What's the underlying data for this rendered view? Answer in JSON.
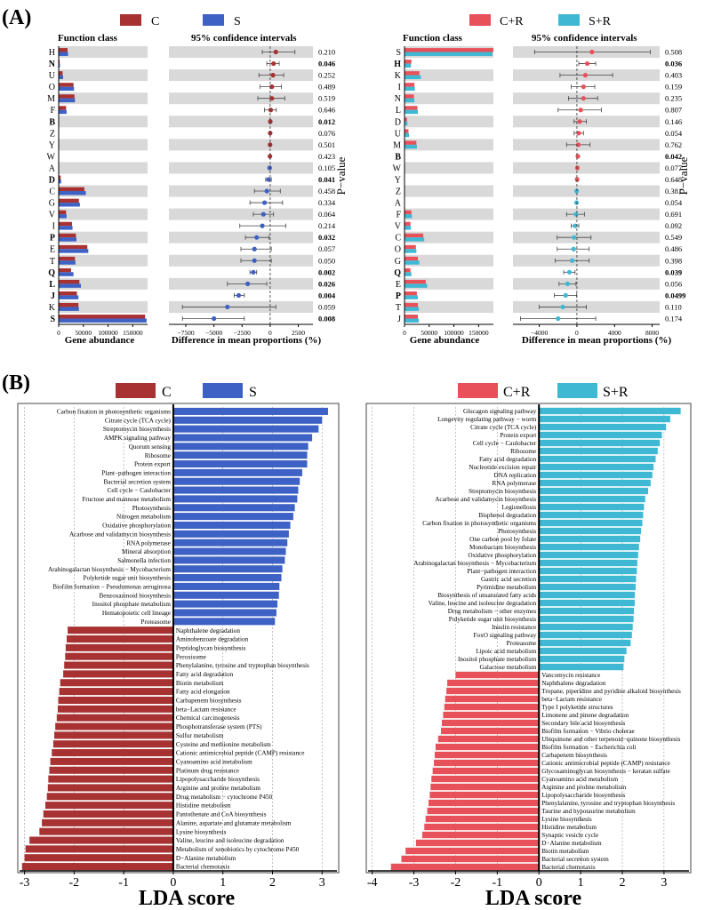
{
  "colors": {
    "C": "#a83232",
    "S": "#3d61c4",
    "CR": "#e8505a",
    "SR": "#3fb8d4",
    "stripe": "#d9d9d9"
  },
  "panelA": {
    "label": "(A)",
    "header_function_class": "Function class",
    "header_ci": "95% confidence intervals",
    "xlabel_abundance": "Gene abundance",
    "xlabel_diff": "Difference in mean proportions (%)",
    "ylabel_p": "P−value",
    "left": {
      "legend": [
        "C",
        "S"
      ],
      "abundance_ticks": [
        "0",
        "50000",
        "100000",
        "150000"
      ],
      "diff_ticks": [
        "−7500",
        "−5000",
        "−2500",
        "0",
        "2500"
      ]
    },
    "right": {
      "legend": [
        "C+R",
        "S+R"
      ],
      "abundance_ticks": [
        "0",
        "50000",
        "100000",
        "150000"
      ],
      "diff_ticks": [
        "−4000",
        "0",
        "4000",
        "8000"
      ]
    }
  },
  "panelB": {
    "label": "(B)",
    "xlabel": "LDA score",
    "left": {
      "legend": [
        "C",
        "S"
      ],
      "ticks": [
        "-3",
        "-2",
        "-1",
        "0",
        "1",
        "2",
        "3"
      ]
    },
    "right": {
      "legend": [
        "C+R",
        "S+R"
      ],
      "ticks": [
        "-4",
        "-3",
        "-2",
        "-1",
        "0",
        "1",
        "2",
        "3"
      ]
    }
  },
  "chart_data": [
    {
      "type": "bar",
      "panel": "A-left",
      "xlabel": "Gene abundance",
      "xlim": [
        0,
        180000
      ],
      "categories": [
        "H",
        "N",
        "U",
        "O",
        "M",
        "F",
        "B",
        "Z",
        "Y",
        "W",
        "A",
        "D",
        "C",
        "G",
        "V",
        "I",
        "P",
        "E",
        "T",
        "Q",
        "L",
        "J",
        "K",
        "S"
      ],
      "bold": [
        "N",
        "B",
        "D",
        "P",
        "Q",
        "L",
        "J",
        "S"
      ],
      "series": [
        {
          "name": "C",
          "values": [
            18000,
            2000,
            8000,
            30000,
            32000,
            15000,
            900,
            500,
            900,
            300,
            300,
            4000,
            52000,
            41000,
            15000,
            27000,
            35000,
            58000,
            33000,
            25000,
            42000,
            37000,
            40000,
            175000
          ]
        },
        {
          "name": "S",
          "values": [
            19000,
            2500,
            9000,
            31000,
            33000,
            16000,
            1000,
            500,
            1000,
            300,
            300,
            5000,
            55000,
            43000,
            16000,
            28000,
            36000,
            60000,
            34000,
            30000,
            45000,
            40000,
            41000,
            178000
          ]
        }
      ]
    },
    {
      "type": "scatter",
      "panel": "A-left-ci",
      "xlabel": "Difference in mean proportions (%)",
      "xlim": [
        -9000,
        3800
      ],
      "categories": [
        "H",
        "N",
        "U",
        "O",
        "M",
        "F",
        "B",
        "Z",
        "Y",
        "W",
        "A",
        "D",
        "C",
        "G",
        "V",
        "I",
        "P",
        "E",
        "T",
        "Q",
        "L",
        "J",
        "K",
        "S"
      ],
      "mean": [
        500,
        300,
        250,
        150,
        150,
        50,
        10,
        0,
        -10,
        -20,
        -50,
        -150,
        -300,
        -500,
        -600,
        -700,
        -1200,
        -1400,
        -1400,
        -1500,
        -2000,
        -2800,
        -3800,
        -5000
      ],
      "lower": [
        -700,
        -300,
        -1000,
        -900,
        -1100,
        -500,
        -60,
        -30,
        -60,
        -60,
        -150,
        -400,
        -1400,
        -1800,
        -1500,
        -2700,
        -2200,
        -2600,
        -2600,
        -1800,
        -3800,
        -3200,
        -7800,
        -7800
      ],
      "upper": [
        2200,
        800,
        1200,
        1000,
        1300,
        550,
        80,
        30,
        50,
        30,
        60,
        100,
        900,
        1100,
        300,
        1400,
        -100,
        100,
        100,
        -1200,
        -300,
        -2300,
        500,
        -2300
      ],
      "group": [
        "C",
        "C",
        "C",
        "C",
        "C",
        "C",
        "C",
        "C",
        "C",
        "C",
        "S",
        "S",
        "S",
        "S",
        "S",
        "S",
        "S",
        "S",
        "S",
        "S",
        "S",
        "S",
        "S",
        "S"
      ],
      "p_values": [
        "0.210",
        "0.046",
        "0.252",
        "0.489",
        "0.519",
        "0.646",
        "0.012",
        "0.076",
        "0.501",
        "0.423",
        "0.105",
        "0.041",
        "0.458",
        "0.334",
        "0.064",
        "0.214",
        "0.032",
        "0.057",
        "0.050",
        "0.002",
        "0.026",
        "0.004",
        "0.059",
        "0.008"
      ]
    },
    {
      "type": "bar",
      "panel": "A-right",
      "xlabel": "Gene abundance",
      "xlim": [
        0,
        180000
      ],
      "categories": [
        "S",
        "H",
        "K",
        "I",
        "N",
        "L",
        "D",
        "U",
        "M",
        "B",
        "W",
        "Y",
        "Z",
        "A",
        "F",
        "V",
        "C",
        "O",
        "G",
        "Q",
        "E",
        "P",
        "T",
        "J"
      ],
      "bold": [
        "H",
        "B",
        "Q",
        "P"
      ],
      "series": [
        {
          "name": "C+R",
          "values": [
            180000,
            14000,
            30000,
            20000,
            19000,
            26000,
            5000,
            8000,
            24000,
            800,
            300,
            600,
            400,
            300,
            14000,
            12000,
            38000,
            23000,
            27000,
            12000,
            43000,
            25000,
            27000,
            27000
          ]
        },
        {
          "name": "S+R",
          "values": [
            178000,
            13000,
            33000,
            21000,
            20000,
            27000,
            6000,
            9000,
            25000,
            900,
            300,
            600,
            400,
            300,
            15000,
            13000,
            40000,
            24000,
            30000,
            14000,
            46000,
            27000,
            29000,
            29000
          ]
        }
      ]
    },
    {
      "type": "scatter",
      "panel": "A-right-ci",
      "xlabel": "Difference in mean proportions (%)",
      "xlim": [
        -6800,
        8800
      ],
      "categories": [
        "S",
        "H",
        "K",
        "I",
        "N",
        "L",
        "D",
        "U",
        "M",
        "B",
        "W",
        "Y",
        "Z",
        "A",
        "F",
        "V",
        "C",
        "O",
        "G",
        "Q",
        "E",
        "P",
        "T",
        "J"
      ],
      "mean": [
        1600,
        1100,
        900,
        700,
        700,
        400,
        300,
        200,
        150,
        100,
        50,
        20,
        -30,
        -40,
        -100,
        -200,
        -300,
        -350,
        -500,
        -800,
        -1000,
        -1200,
        -1500,
        -2000
      ],
      "lower": [
        -4500,
        200,
        -1800,
        -600,
        -900,
        -2000,
        -300,
        -300,
        -1100,
        20,
        -60,
        -100,
        -100,
        -100,
        -1100,
        -600,
        -2100,
        -2100,
        -2300,
        -1400,
        -1900,
        -2400,
        -4000,
        -6000
      ],
      "upper": [
        7800,
        2000,
        3800,
        1900,
        2200,
        2600,
        1000,
        700,
        1400,
        180,
        150,
        150,
        30,
        20,
        800,
        200,
        1500,
        1300,
        1300,
        -200,
        -100,
        -30,
        1000,
        2000
      ],
      "group": [
        "C+R",
        "C+R",
        "C+R",
        "C+R",
        "C+R",
        "C+R",
        "C+R",
        "C+R",
        "C+R",
        "C+R",
        "C+R",
        "C+R",
        "S+R",
        "S+R",
        "S+R",
        "S+R",
        "S+R",
        "S+R",
        "S+R",
        "S+R",
        "S+R",
        "S+R",
        "S+R",
        "S+R"
      ],
      "p_values": [
        "0.508",
        "0.036",
        "0.403",
        "0.159",
        "0.235",
        "0.807",
        "0.146",
        "0.054",
        "0.762",
        "0.042",
        "0.077",
        "0.648",
        "0.381",
        "0.054",
        "0.691",
        "0.092",
        "0.549",
        "0.486",
        "0.398",
        "0.039",
        "0.056",
        "0.0499",
        "0.110",
        "0.174"
      ]
    },
    {
      "type": "bar",
      "panel": "B-left",
      "xlabel": "LDA score",
      "xlim": [
        -3.1,
        3.3
      ],
      "categories": [
        "Carbon fixation in photosynthetic organisms",
        "Citrate cycle (TCA cycle)",
        "Streptomycin biosynthesis",
        "AMPK signaling pathway",
        "Quorum sensing",
        "Ribosome",
        "Protein export",
        "Plant−pathogen interaction",
        "Bacterial secretion system",
        "Cell cycle − Caulobacter",
        "Fructose and mannose metabolism",
        "Photosynthesis",
        "Nitrogen metabolism",
        "Oxidative phosphorylation",
        "Acarbose and validamycin biosynthesis",
        "RNA polymerase",
        "Mineral absorption",
        "Salmonella infection",
        "Arabinogalactan biosynthesis − Mycobacterium",
        "Polyketide sugar unit biosynthesis",
        "Biofilm formation − Pseudomonas aeruginosa",
        "Benzoxazinoid biosynthesis",
        "Inositol phosphate metabolism",
        "Hematopoietic cell lineage",
        "Proteasome",
        "Naphthalene degradation",
        "Aminobenzoate degradation",
        "Peptidoglycan biosynthesis",
        "Peroxisome",
        "Phenylalanine, tyrosine and tryptophan biosynthesis",
        "Fatty acid degradation",
        "Biotin metabolism",
        "Fatty acid elongation",
        "Carbapenem biosynthesis",
        "beta−Lactam resistance",
        "Chemical carcinogenesis",
        "Phosphotransferase system (PTS)",
        "Sulfur metabolism",
        "Cysteine and methionine metabolism",
        "Cationic antimicrobial peptide (CAMP) resistance",
        "Cyanoamino acid metabolism",
        "Platinum drug resistance",
        "Lipopolysaccharide biosynthesis",
        "Arginine and proline metabolism",
        "Drug metabolism − cytochrome P450",
        "Histidine metabolism",
        "Pantothenate and CoA biosynthesis",
        "Alanine, aspartate and glutamate metabolism",
        "Lysine biosynthesis",
        "Valine, leucine and isoleucine degradation",
        "Metabolism of xenobiotics by cytochrome P450",
        "D−Alanine metabolism",
        "Bacterial chemotaxis"
      ],
      "values": [
        3.12,
        3.0,
        2.93,
        2.8,
        2.72,
        2.7,
        2.7,
        2.6,
        2.55,
        2.52,
        2.5,
        2.45,
        2.42,
        2.36,
        2.33,
        2.3,
        2.27,
        2.25,
        2.2,
        2.18,
        2.14,
        2.13,
        2.1,
        2.08,
        2.05,
        -2.13,
        -2.15,
        -2.17,
        -2.18,
        -2.2,
        -2.22,
        -2.28,
        -2.3,
        -2.32,
        -2.33,
        -2.35,
        -2.38,
        -2.4,
        -2.42,
        -2.45,
        -2.48,
        -2.5,
        -2.52,
        -2.53,
        -2.55,
        -2.58,
        -2.62,
        -2.65,
        -2.7,
        -2.9,
        -2.98,
        -3.0,
        -3.05
      ]
    },
    {
      "type": "bar",
      "panel": "B-right",
      "xlabel": "LDA score",
      "xlim": [
        -4.1,
        3.6
      ],
      "categories": [
        "Glucagon signaling pathway",
        "Longevity regulating pathway − worm",
        "Citrate cycle (TCA cycle)",
        "Protein export",
        "Cell cycle − Caulobacter",
        "Ribosome",
        "Fatty acid degradation",
        "Nucleotide excision repair",
        "DNA replication",
        "RNA polymerase",
        "Streptomycin biosynthesis",
        "Acarbose and validamycin biosynthesis",
        "Legionellosis",
        "Bisphenol degradation",
        "Carbon fixation in photosynthetic organisms",
        "Photosynthesis",
        "One carbon pool by folate",
        "Monobactam biosynthesis",
        "Oxidative phosphorylation",
        "Arabinogalactan biosynthesis − Mycobacterium",
        "Plant−pathogen interaction",
        "Gastric acid secretion",
        "Pyrimidine metabolism",
        "Biosynthesis of unsaturated fatty acids",
        "Valine, leucine and isoleucine degradation",
        "Drug metabolism − other enzymes",
        "Polyketide sugar unit biosynthesis",
        "Insulin resistance",
        "FoxO signaling pathway",
        "Proteasome",
        "Lipoic acid metabolism",
        "Inositol phosphate metabolism",
        "Galactose metabolism",
        "Vancomycin resistance",
        "Naphthalene degradation",
        "Tropane, piperidine and pyridine alkaloid biosynthesis",
        "beta−Lactam resistance",
        "Type I polyketide structures",
        "Limonene and pinene degradation",
        "Secondary bile acid biosynthesis",
        "Biofilm formation − Vibrio cholerae",
        "Ubiquinone and other terpenoid−quinone biosynthesis",
        "Biofilm formation − Escherichia coli",
        "Carbapenem biosynthesis",
        "Cationic antimicrobial peptide (CAMP) resistance",
        "Glycosaminoglycan biosynthesis − keratan sulfate",
        "Cyanoamino acid metabolism",
        "Arginine and proline metabolism",
        "Lipopolysaccharide biosynthesis",
        "Phenylalanine, tyrosine and tryptophan biosynthesis",
        "Taurine and hypotaurine metabolism",
        "Lysine biosynthesis",
        "Histidine metabolism",
        "Synaptic vesicle cycle",
        "D−Alanine metabolism",
        "Biotin metabolism",
        "Bacterial secretion system",
        "Bacterial chemotaxis"
      ],
      "values": [
        3.4,
        3.15,
        3.05,
        2.95,
        2.9,
        2.85,
        2.8,
        2.75,
        2.72,
        2.68,
        2.62,
        2.55,
        2.52,
        2.5,
        2.48,
        2.45,
        2.43,
        2.4,
        2.38,
        2.36,
        2.35,
        2.33,
        2.32,
        2.3,
        2.3,
        2.28,
        2.27,
        2.25,
        2.23,
        2.2,
        2.1,
        2.05,
        2.03,
        -2.0,
        -2.2,
        -2.22,
        -2.25,
        -2.27,
        -2.3,
        -2.33,
        -2.35,
        -2.42,
        -2.48,
        -2.5,
        -2.52,
        -2.55,
        -2.58,
        -2.6,
        -2.62,
        -2.65,
        -2.68,
        -2.72,
        -2.75,
        -2.8,
        -2.95,
        -3.2,
        -3.3,
        -3.55
      ]
    }
  ]
}
